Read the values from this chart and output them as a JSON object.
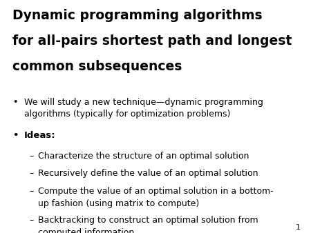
{
  "background_color": "#ffffff",
  "title_lines": [
    "Dynamic programming algorithms",
    "for all-pairs shortest path and longest",
    "common subsequences"
  ],
  "title_fontsize": 13.5,
  "title_color": "#000000",
  "bullet1_text": "We will study a new technique—dynamic programming\nalgorithms (typically for optimization problems)",
  "bullet2_bold": "Ideas:",
  "sub_bullets": [
    "Characterize the structure of an optimal solution",
    "Recursively define the value of an optimal solution",
    "Compute the value of an optimal solution in a bottom-\nup fashion (using matrix to compute)",
    "Backtracking to construct an optimal solution from\ncomputed information."
  ],
  "page_number": "1",
  "body_fontsize": 9.0,
  "sub_fontsize": 9.0,
  "ideas_fontsize": 9.5
}
